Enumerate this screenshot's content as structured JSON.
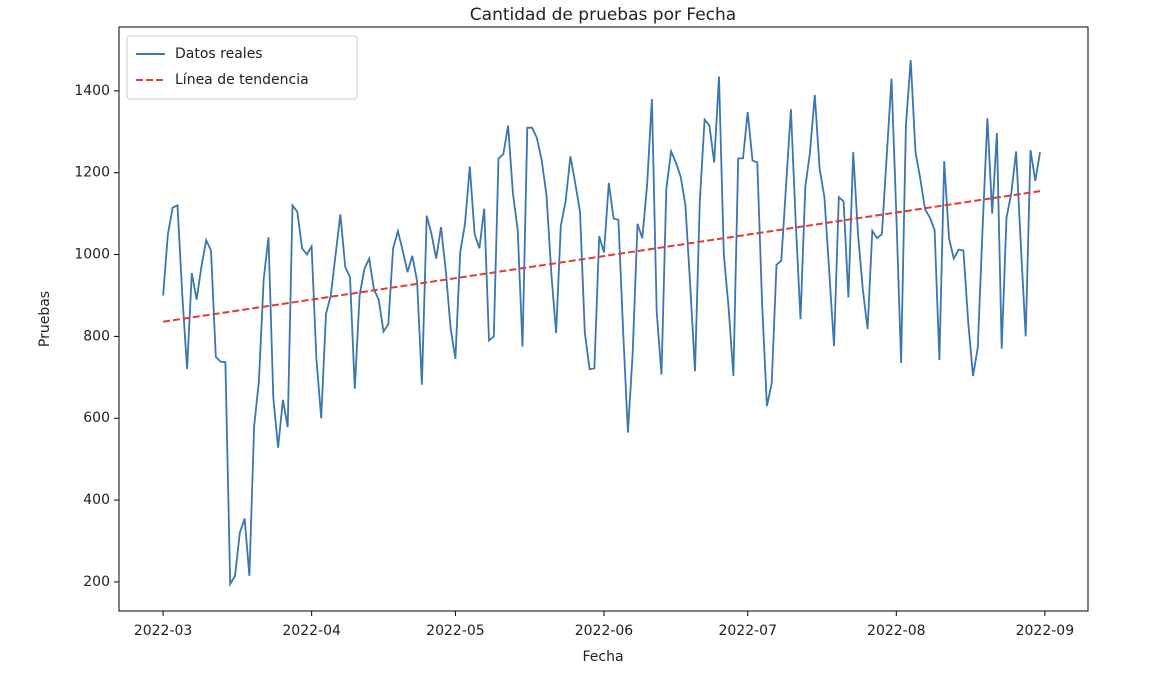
{
  "chart_data": {
    "type": "line",
    "title": "Cantidad de pruebas por Fecha",
    "xlabel": "Fecha",
    "ylabel": "Pruebas",
    "xlim": [
      -9.2,
      193
    ],
    "ylim": [
      129,
      1556
    ],
    "xticks": [
      {
        "value": 0,
        "label": "2022-03"
      },
      {
        "value": 31,
        "label": "2022-04"
      },
      {
        "value": 61,
        "label": "2022-05"
      },
      {
        "value": 92,
        "label": "2022-06"
      },
      {
        "value": 122,
        "label": "2022-07"
      },
      {
        "value": 153,
        "label": "2022-08"
      },
      {
        "value": 184,
        "label": "2022-09"
      }
    ],
    "yticks": [
      200,
      400,
      600,
      800,
      1000,
      1200,
      1400
    ],
    "legend": "upper left",
    "series": [
      {
        "name": "Datos reales",
        "color": "#3a76af",
        "style": "solid",
        "values": [
          900,
          1050,
          1115,
          1120,
          900,
          720,
          955,
          890,
          970,
          1035,
          1010,
          750,
          738,
          737,
          195,
          215,
          320,
          355,
          215,
          580,
          690,
          940,
          1042,
          650,
          528,
          645,
          578,
          1120,
          1105,
          1015,
          1000,
          1020,
          745,
          600,
          855,
          900,
          1000,
          1098,
          970,
          945,
          672,
          900,
          965,
          990,
          915,
          890,
          812,
          830,
          1015,
          1057,
          1010,
          957,
          997,
          935,
          682,
          1095,
          1050,
          990,
          1067,
          960,
          820,
          745,
          1005,
          1075,
          1215,
          1050,
          1015,
          1112,
          790,
          800,
          1235,
          1245,
          1315,
          1150,
          1060,
          775,
          1310,
          1310,
          1285,
          1230,
          1145,
          955,
          808,
          1070,
          1130,
          1240,
          1175,
          1105,
          810,
          720,
          722,
          1045,
          1005,
          1175,
          1088,
          1085,
          815,
          565,
          760,
          1075,
          1040,
          1170,
          1380,
          860,
          707,
          1160,
          1252,
          1225,
          1190,
          1120,
          925,
          715,
          1130,
          1330,
          1315,
          1225,
          1435,
          1000,
          870,
          703,
          1235,
          1235,
          1348,
          1230,
          1225,
          880,
          630,
          685,
          975,
          985,
          1170,
          1355,
          1080,
          842,
          1165,
          1250,
          1390,
          1210,
          1140,
          960,
          776,
          1140,
          1130,
          895,
          1250,
          1050,
          915,
          818,
          1058,
          1040,
          1050,
          1240,
          1430,
          1100,
          735,
          1315,
          1475,
          1250,
          1185,
          1110,
          1090,
          1060,
          742,
          1228,
          1040,
          990,
          1012,
          1010,
          835,
          703,
          773,
          1065,
          1333,
          1100,
          1297,
          770,
          1090,
          1150,
          1252,
          1020,
          800,
          1255,
          1180,
          1250
        ]
      },
      {
        "name": "Línea de tendencia",
        "color": "#e03c31",
        "style": "dashed",
        "x": [
          0,
          183
        ],
        "values": [
          836,
          1155
        ]
      }
    ]
  }
}
